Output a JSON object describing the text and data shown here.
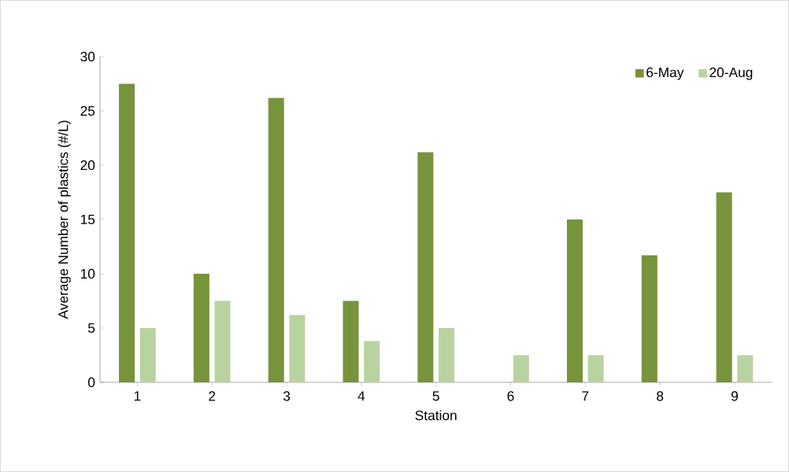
{
  "chart_data": {
    "type": "bar",
    "xlabel": "Station",
    "ylabel": "Average Number of plastics (#/L)",
    "categories": [
      "1",
      "2",
      "3",
      "4",
      "5",
      "6",
      "7",
      "8",
      "9"
    ],
    "series": [
      {
        "name": "6-May",
        "color": "#77933c",
        "values": [
          27.5,
          10,
          26.2,
          7.5,
          21.2,
          0,
          15,
          11.7,
          17.5
        ]
      },
      {
        "name": "20-Aug",
        "color": "#b9d3a0",
        "values": [
          5,
          7.5,
          6.2,
          3.8,
          5,
          2.5,
          2.5,
          0,
          2.5
        ]
      }
    ],
    "ylim": [
      0,
      30
    ],
    "yticks": [
      0,
      5,
      10,
      15,
      20,
      25,
      30
    ],
    "legend": "top right"
  }
}
